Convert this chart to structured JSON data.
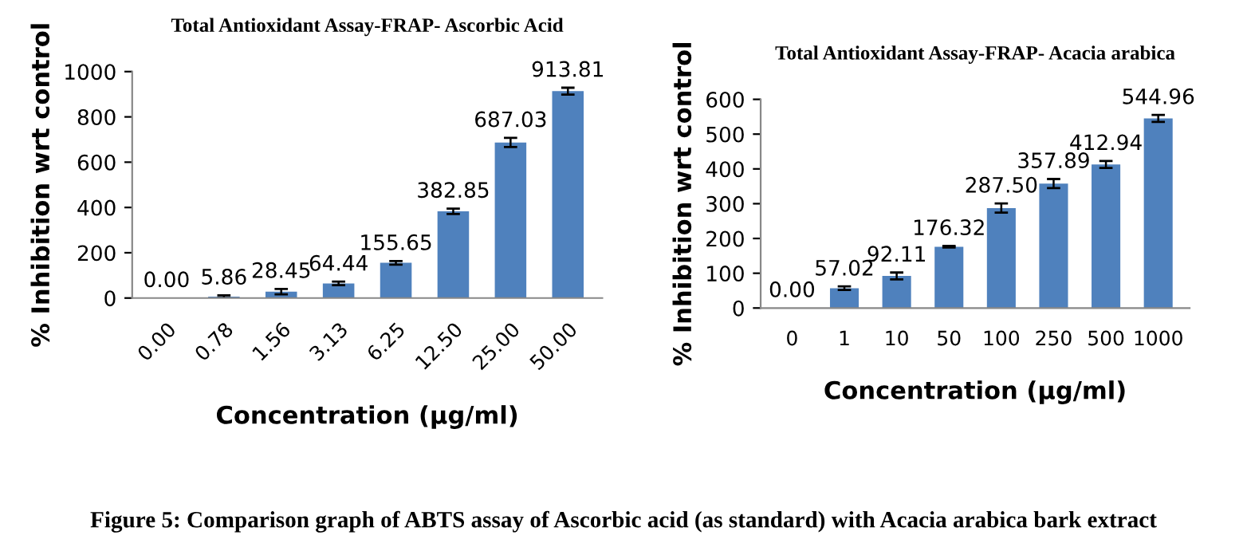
{
  "chart_data": [
    {
      "type": "bar",
      "title": "Total Antioxidant Assay-FRAP- Ascorbic Acid",
      "xlabel": "Concentration (µg/ml)",
      "ylabel": "% Inhibition wrt control",
      "categories": [
        "0.00",
        "0.78",
        "1.56",
        "3.13",
        "6.25",
        "12.50",
        "25.00",
        "50.00"
      ],
      "values": [
        0.0,
        5.86,
        28.45,
        64.44,
        155.65,
        382.85,
        687.03,
        913.81
      ],
      "errors": [
        null,
        6,
        12,
        8,
        8,
        12,
        20,
        15
      ],
      "value_labels": [
        "0.00",
        "5.86",
        "28.45",
        "64.44",
        "155.65",
        "382.85",
        "687.03",
        "913.81"
      ],
      "color": "#4f81bd",
      "ylim": [
        0,
        1000
      ],
      "yticks": [
        0,
        200,
        400,
        600,
        800,
        1000
      ],
      "grid": false,
      "annotations": [
        "Figure 5: Comparison graph of ABTS assay of Ascorbic acid (as standard) with Acacia arabica bark extract"
      ]
    },
    {
      "type": "bar",
      "title": "Total Antioxidant Assay-FRAP- Acacia arabica",
      "xlabel": "Concentration (µg/ml)",
      "ylabel": "% Inhibition wrt control",
      "categories": [
        "0",
        "1",
        "10",
        "50",
        "100",
        "250",
        "500",
        "1000"
      ],
      "values": [
        0.0,
        57.02,
        92.11,
        176.32,
        287.5,
        357.89,
        412.94,
        544.96
      ],
      "errors": [
        null,
        5,
        10,
        2,
        13,
        13,
        10,
        10
      ],
      "value_labels": [
        "0.00",
        "57.02",
        "92.11",
        "176.32",
        "287.50",
        "357.89",
        "412.94",
        "544.96"
      ],
      "color": "#4f81bd",
      "ylim": [
        0,
        600
      ],
      "yticks": [
        0,
        100,
        200,
        300,
        400,
        500,
        600
      ],
      "grid": false
    }
  ]
}
